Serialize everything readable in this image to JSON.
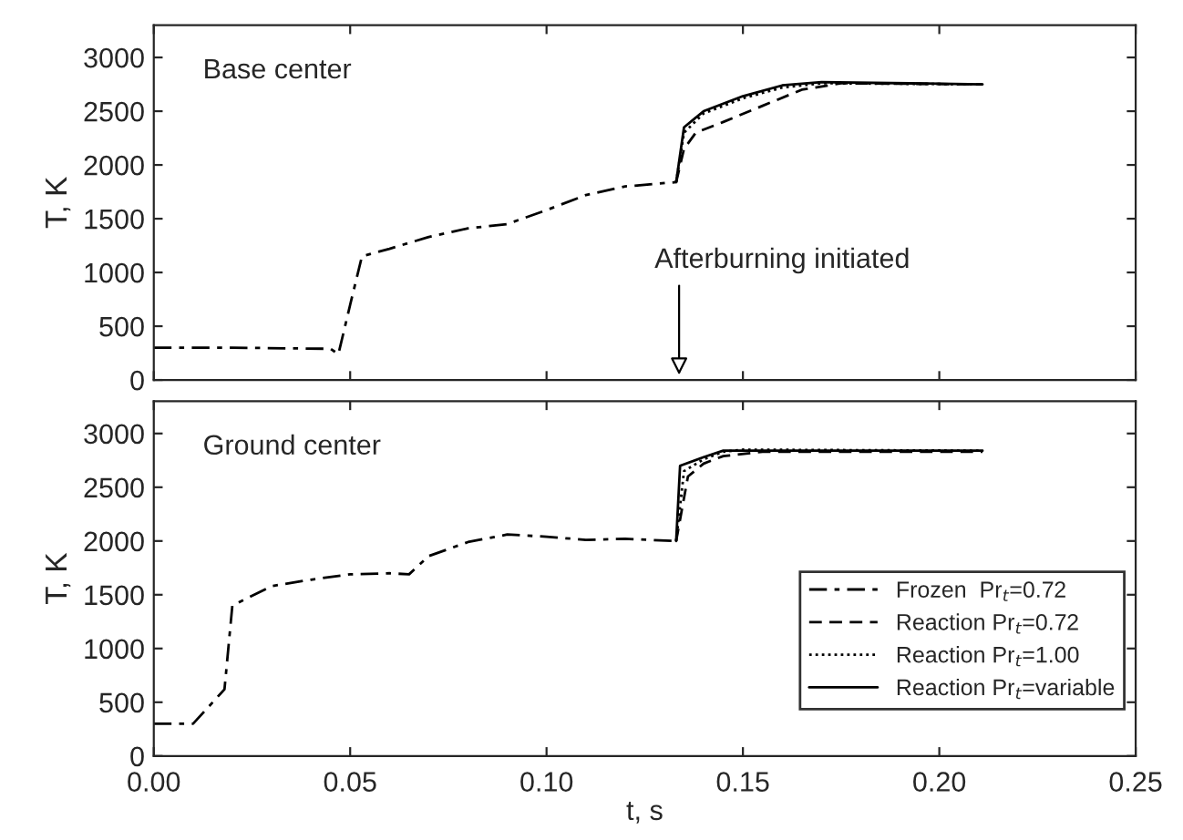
{
  "chart_data": [
    {
      "type": "line",
      "ylabel": "T, K",
      "xlim": [
        0,
        0.25
      ],
      "xticks": [
        {
          "value": 0,
          "label": null
        },
        {
          "value": 0.05,
          "label": null
        },
        {
          "value": 0.1,
          "label": null
        },
        {
          "value": 0.15,
          "label": null
        },
        {
          "value": 0.2,
          "label": null
        },
        {
          "value": 0.25,
          "label": null
        }
      ],
      "ylim": [
        0,
        3300
      ],
      "yticks": [
        0,
        500,
        1000,
        1500,
        2000,
        2500,
        3000
      ],
      "tick_labels": "y",
      "grid": false,
      "legend": false,
      "annotations": [
        "Base center",
        "Afterburning initiated"
      ],
      "series": [
        {
          "color": "#000000",
          "line_style": "dashdot",
          "x": [
            0,
            0.02,
            0.045,
            0.047,
            0.05,
            0.053,
            0.06,
            0.07,
            0.08,
            0.09,
            0.1,
            0.11,
            0.12,
            0.133
          ],
          "values": [
            300,
            300,
            290,
            240,
            700,
            1150,
            1220,
            1330,
            1410,
            1450,
            1580,
            1720,
            1800,
            1840
          ]
        },
        {
          "color": "#000000",
          "line_style": "dashed",
          "x": [
            0.133,
            0.135,
            0.138,
            0.145,
            0.155,
            0.165,
            0.175,
            0.211
          ],
          "values": [
            1840,
            2150,
            2300,
            2400,
            2550,
            2700,
            2760,
            2750
          ]
        },
        {
          "color": "#000000",
          "line_style": "dotted",
          "x": [
            0.133,
            0.135,
            0.14,
            0.15,
            0.16,
            0.17,
            0.211
          ],
          "values": [
            1840,
            2300,
            2480,
            2620,
            2720,
            2760,
            2750
          ]
        },
        {
          "color": "#000000",
          "line_style": "solid",
          "x": [
            0.133,
            0.135,
            0.14,
            0.15,
            0.16,
            0.17,
            0.211
          ],
          "values": [
            1840,
            2350,
            2500,
            2640,
            2740,
            2770,
            2750
          ]
        }
      ]
    },
    {
      "type": "line",
      "xlabel": "t, s",
      "ylabel": "T, K",
      "xlim": [
        0,
        0.25
      ],
      "xticks": [
        {
          "value": 0,
          "label": "0.00"
        },
        {
          "value": 0.05,
          "label": "0.05"
        },
        {
          "value": 0.1,
          "label": "0.10"
        },
        {
          "value": 0.15,
          "label": "0.15"
        },
        {
          "value": 0.2,
          "label": "0.20"
        },
        {
          "value": 0.25,
          "label": "0.25"
        }
      ],
      "ylim": [
        0,
        3300
      ],
      "yticks": [
        0,
        500,
        1000,
        1500,
        2000,
        2500,
        3000
      ],
      "grid": false,
      "legend": "bottom right",
      "annotations": [
        "Ground center"
      ],
      "series": [
        {
          "name": "Frozen  Pr$_{t}$=0.72",
          "color": "#000000",
          "line_style": "dashdot",
          "x": [
            0,
            0.01,
            0.018,
            0.02,
            0.03,
            0.04,
            0.05,
            0.06,
            0.065,
            0.07,
            0.08,
            0.09,
            0.1,
            0.11,
            0.12,
            0.133
          ],
          "values": [
            300,
            300,
            620,
            1400,
            1580,
            1640,
            1690,
            1700,
            1690,
            1860,
            1990,
            2060,
            2040,
            2010,
            2020,
            2000
          ]
        },
        {
          "name": "Reaction Pr$_{t}$=0.72",
          "color": "#000000",
          "line_style": "dashed",
          "x": [
            0.133,
            0.136,
            0.14,
            0.145,
            0.155,
            0.211
          ],
          "values": [
            2000,
            2600,
            2720,
            2790,
            2830,
            2830
          ]
        },
        {
          "name": "Reaction Pr$_{t}$=1.00",
          "color": "#000000",
          "line_style": "dotted",
          "x": [
            0.133,
            0.135,
            0.14,
            0.145,
            0.15,
            0.211
          ],
          "values": [
            2000,
            2650,
            2760,
            2830,
            2850,
            2840
          ]
        },
        {
          "name": "Reaction Pr$_{t}$=variable",
          "color": "#000000",
          "line_style": "solid",
          "x": [
            0.133,
            0.134,
            0.14,
            0.145,
            0.211
          ],
          "values": [
            2000,
            2700,
            2780,
            2840,
            2840
          ]
        }
      ]
    }
  ]
}
